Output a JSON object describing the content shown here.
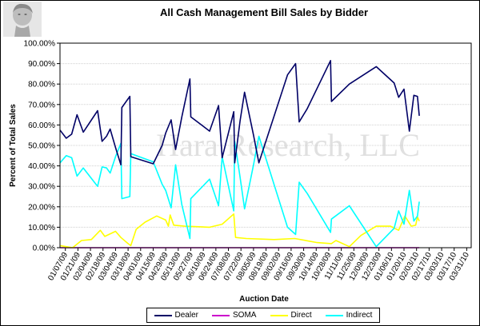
{
  "chart_data": {
    "type": "line",
    "title": "All Cash Management Bill Sales by Bidder",
    "xlabel": "Auction Date",
    "ylabel": "Percent of Total Sales",
    "watermark": "Hara Research, LLC",
    "ylim": [
      0,
      100
    ],
    "yticks": [
      "0.00%",
      "10.00%",
      "20.00%",
      "30.00%",
      "40.00%",
      "50.00%",
      "60.00%",
      "70.00%",
      "80.00%",
      "90.00%",
      "100.00%"
    ],
    "x_range": [
      "2009-01-01",
      "2010-04-05"
    ],
    "xticks": [
      {
        "date": "2009-01-07",
        "label": "01/07/09"
      },
      {
        "date": "2009-01-21",
        "label": "01/21/09"
      },
      {
        "date": "2009-02-04",
        "label": "02/04/09"
      },
      {
        "date": "2009-02-18",
        "label": "02/18/09"
      },
      {
        "date": "2009-03-04",
        "label": "03/04/09"
      },
      {
        "date": "2009-03-18",
        "label": "03/18/09"
      },
      {
        "date": "2009-04-01",
        "label": "04/01/09"
      },
      {
        "date": "2009-04-15",
        "label": "04/15/09"
      },
      {
        "date": "2009-04-29",
        "label": "04/29/09"
      },
      {
        "date": "2009-05-13",
        "label": "05/13/09"
      },
      {
        "date": "2009-05-27",
        "label": "05/27/09"
      },
      {
        "date": "2009-06-10",
        "label": "06/10/09"
      },
      {
        "date": "2009-06-24",
        "label": "06/24/09"
      },
      {
        "date": "2009-07-08",
        "label": "07/08/09"
      },
      {
        "date": "2009-07-22",
        "label": "07/22/09"
      },
      {
        "date": "2009-08-05",
        "label": "08/05/09"
      },
      {
        "date": "2009-08-19",
        "label": "08/19/09"
      },
      {
        "date": "2009-09-02",
        "label": "09/02/09"
      },
      {
        "date": "2009-09-16",
        "label": "09/16/09"
      },
      {
        "date": "2009-09-30",
        "label": "09/30/09"
      },
      {
        "date": "2009-10-14",
        "label": "10/14/09"
      },
      {
        "date": "2009-10-28",
        "label": "10/28/09"
      },
      {
        "date": "2009-11-11",
        "label": "11/11/09"
      },
      {
        "date": "2009-11-25",
        "label": "11/25/09"
      },
      {
        "date": "2009-12-09",
        "label": "12/09/09"
      },
      {
        "date": "2009-12-23",
        "label": "12/23/09"
      },
      {
        "date": "2010-01-06",
        "label": "01/06/10"
      },
      {
        "date": "2010-01-20",
        "label": "01/20/10"
      },
      {
        "date": "2010-02-03",
        "label": "02/03/10"
      },
      {
        "date": "2010-02-17",
        "label": "02/17/10"
      },
      {
        "date": "2010-03-03",
        "label": "03/03/10"
      },
      {
        "date": "2010-03-17",
        "label": "03/17/10"
      },
      {
        "date": "2010-03-31",
        "label": "03/31/10"
      }
    ],
    "legend_position": "bottom",
    "series": [
      {
        "name": "Dealer",
        "color": "#000066",
        "points": [
          [
            "2009-01-01",
            57.5
          ],
          [
            "2009-01-08",
            53.5
          ],
          [
            "2009-01-14",
            55.5
          ],
          [
            "2009-01-20",
            65.0
          ],
          [
            "2009-01-27",
            56.5
          ],
          [
            "2009-02-12",
            67.0
          ],
          [
            "2009-02-17",
            52.0
          ],
          [
            "2009-02-22",
            54.5
          ],
          [
            "2009-02-26",
            58.0
          ],
          [
            "2009-03-04",
            49.0
          ],
          [
            "2009-03-10",
            40.5
          ],
          [
            "2009-03-11",
            68.5
          ],
          [
            "2009-03-20",
            74.0
          ],
          [
            "2009-03-21",
            44.5
          ],
          [
            "2009-04-15",
            41.0
          ],
          [
            "2009-04-25",
            50.0
          ],
          [
            "2009-04-29",
            56.0
          ],
          [
            "2009-05-05",
            62.5
          ],
          [
            "2009-05-10",
            48.0
          ],
          [
            "2009-05-17",
            64.0
          ],
          [
            "2009-05-26",
            82.5
          ],
          [
            "2009-05-27",
            64.0
          ],
          [
            "2009-06-17",
            57.0
          ],
          [
            "2009-06-27",
            69.5
          ],
          [
            "2009-07-01",
            44.0
          ],
          [
            "2009-07-14",
            66.5
          ],
          [
            "2009-07-15",
            41.5
          ],
          [
            "2009-07-21",
            62.0
          ],
          [
            "2009-07-26",
            76.0
          ],
          [
            "2009-08-05",
            55.0
          ],
          [
            "2009-08-11",
            41.5
          ],
          [
            "2009-09-12",
            84.5
          ],
          [
            "2009-09-21",
            90.0
          ],
          [
            "2009-09-25",
            61.5
          ],
          [
            "2009-10-04",
            68.0
          ],
          [
            "2009-10-30",
            91.5
          ],
          [
            "2009-10-31",
            71.5
          ],
          [
            "2009-11-20",
            80.0
          ],
          [
            "2009-12-20",
            88.5
          ],
          [
            "2010-01-09",
            80.5
          ],
          [
            "2010-01-14",
            73.5
          ],
          [
            "2010-01-20",
            77.5
          ],
          [
            "2010-01-26",
            57.0
          ],
          [
            "2010-01-31",
            74.5
          ],
          [
            "2010-02-04",
            74.0
          ],
          [
            "2010-02-06",
            64.5
          ]
        ]
      },
      {
        "name": "SOMA",
        "color": "#cc00cc",
        "points": [
          [
            "2009-01-01",
            0
          ],
          [
            "2010-02-06",
            0
          ]
        ]
      },
      {
        "name": "Direct",
        "color": "#ffff00",
        "points": [
          [
            "2009-01-01",
            1.0
          ],
          [
            "2009-01-08",
            0.5
          ],
          [
            "2009-01-15",
            0.0
          ],
          [
            "2009-01-25",
            3.5
          ],
          [
            "2009-02-05",
            4.0
          ],
          [
            "2009-02-15",
            8.5
          ],
          [
            "2009-02-20",
            5.5
          ],
          [
            "2009-03-04",
            8.0
          ],
          [
            "2009-03-10",
            5.0
          ],
          [
            "2009-03-18",
            2.0
          ],
          [
            "2009-03-21",
            1.0
          ],
          [
            "2009-03-27",
            9.0
          ],
          [
            "2009-04-06",
            12.5
          ],
          [
            "2009-04-19",
            15.5
          ],
          [
            "2009-04-29",
            13.5
          ],
          [
            "2009-05-02",
            10.5
          ],
          [
            "2009-05-04",
            16.0
          ],
          [
            "2009-05-08",
            11.0
          ],
          [
            "2009-05-20",
            10.5
          ],
          [
            "2009-06-17",
            10.0
          ],
          [
            "2009-07-01",
            11.5
          ],
          [
            "2009-07-14",
            16.5
          ],
          [
            "2009-07-16",
            5.0
          ],
          [
            "2009-07-28",
            4.5
          ],
          [
            "2009-08-28",
            4.0
          ],
          [
            "2009-09-20",
            4.5
          ],
          [
            "2009-10-15",
            2.5
          ],
          [
            "2009-10-31",
            2.0
          ],
          [
            "2009-11-05",
            3.5
          ],
          [
            "2009-11-20",
            0.5
          ],
          [
            "2009-12-03",
            6.0
          ],
          [
            "2009-12-20",
            10.5
          ],
          [
            "2010-01-05",
            10.5
          ],
          [
            "2010-01-14",
            8.5
          ],
          [
            "2010-01-21",
            15.5
          ],
          [
            "2010-01-28",
            10.5
          ],
          [
            "2010-02-02",
            11.0
          ],
          [
            "2010-02-04",
            15.0
          ],
          [
            "2010-02-06",
            13.0
          ]
        ]
      },
      {
        "name": "Indirect",
        "color": "#00ffff",
        "points": [
          [
            "2009-01-01",
            41.5
          ],
          [
            "2009-01-08",
            45.0
          ],
          [
            "2009-01-14",
            44.0
          ],
          [
            "2009-01-20",
            35.0
          ],
          [
            "2009-01-27",
            39.0
          ],
          [
            "2009-02-12",
            30.0
          ],
          [
            "2009-02-17",
            39.5
          ],
          [
            "2009-02-22",
            39.0
          ],
          [
            "2009-02-26",
            36.5
          ],
          [
            "2009-03-04",
            44.5
          ],
          [
            "2009-03-10",
            51.0
          ],
          [
            "2009-03-11",
            24.0
          ],
          [
            "2009-03-20",
            25.0
          ],
          [
            "2009-03-21",
            46.0
          ],
          [
            "2009-04-15",
            42.0
          ],
          [
            "2009-04-25",
            31.0
          ],
          [
            "2009-04-29",
            28.0
          ],
          [
            "2009-05-05",
            19.5
          ],
          [
            "2009-05-10",
            40.5
          ],
          [
            "2009-05-17",
            21.0
          ],
          [
            "2009-05-26",
            4.5
          ],
          [
            "2009-05-27",
            24.0
          ],
          [
            "2009-06-17",
            33.5
          ],
          [
            "2009-06-27",
            20.5
          ],
          [
            "2009-07-01",
            44.5
          ],
          [
            "2009-07-14",
            18.0
          ],
          [
            "2009-07-15",
            52.0
          ],
          [
            "2009-07-21",
            34.5
          ],
          [
            "2009-07-26",
            19.0
          ],
          [
            "2009-08-05",
            40.5
          ],
          [
            "2009-08-11",
            54.5
          ],
          [
            "2009-09-12",
            10.0
          ],
          [
            "2009-09-21",
            6.5
          ],
          [
            "2009-09-25",
            32.0
          ],
          [
            "2009-10-04",
            26.5
          ],
          [
            "2009-10-30",
            7.5
          ],
          [
            "2009-10-31",
            14.0
          ],
          [
            "2009-11-20",
            20.5
          ],
          [
            "2009-12-20",
            0.5
          ],
          [
            "2010-01-09",
            9.5
          ],
          [
            "2010-01-14",
            18.0
          ],
          [
            "2010-01-20",
            11.5
          ],
          [
            "2010-01-26",
            28.0
          ],
          [
            "2010-01-31",
            13.0
          ],
          [
            "2010-02-04",
            15.5
          ],
          [
            "2010-02-06",
            22.5
          ]
        ]
      }
    ]
  }
}
